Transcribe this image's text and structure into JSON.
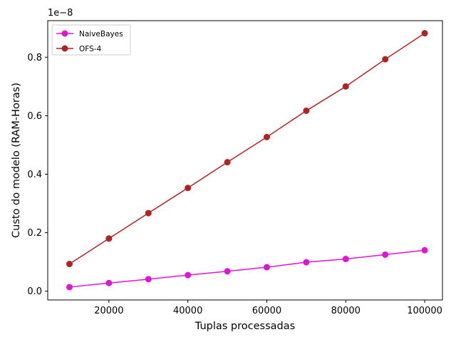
{
  "chart_data": {
    "type": "line",
    "xlabel": "Tuplas processadas",
    "ylabel": "Custo do modelo (RAM-Horas)",
    "offset_text": "1e−8",
    "x": [
      10000,
      20000,
      30000,
      40000,
      50000,
      60000,
      70000,
      80000,
      90000,
      100000
    ],
    "xlim": [
      4500,
      104500
    ],
    "ylim": [
      -0.03,
      0.925
    ],
    "y_scale_factor": 1e-08,
    "x_ticks": [
      20000,
      40000,
      60000,
      80000,
      100000
    ],
    "x_tick_labels": [
      "20000",
      "40000",
      "60000",
      "80000",
      "100000"
    ],
    "y_ticks": [
      0.0,
      0.2,
      0.4,
      0.6,
      0.8
    ],
    "y_tick_labels": [
      "0.0",
      "0.2",
      "0.4",
      "0.6",
      "0.8"
    ],
    "grid": false,
    "legend_position": "top-left",
    "series": [
      {
        "name": "NaiveBayes",
        "color": "#e014d4",
        "values": [
          0.014,
          0.028,
          0.041,
          0.055,
          0.068,
          0.082,
          0.099,
          0.11,
          0.125,
          0.14
        ]
      },
      {
        "name": "OFS-4",
        "color": "#b22222",
        "values": [
          0.093,
          0.18,
          0.267,
          0.353,
          0.441,
          0.527,
          0.617,
          0.7,
          0.793,
          0.882
        ]
      }
    ]
  }
}
